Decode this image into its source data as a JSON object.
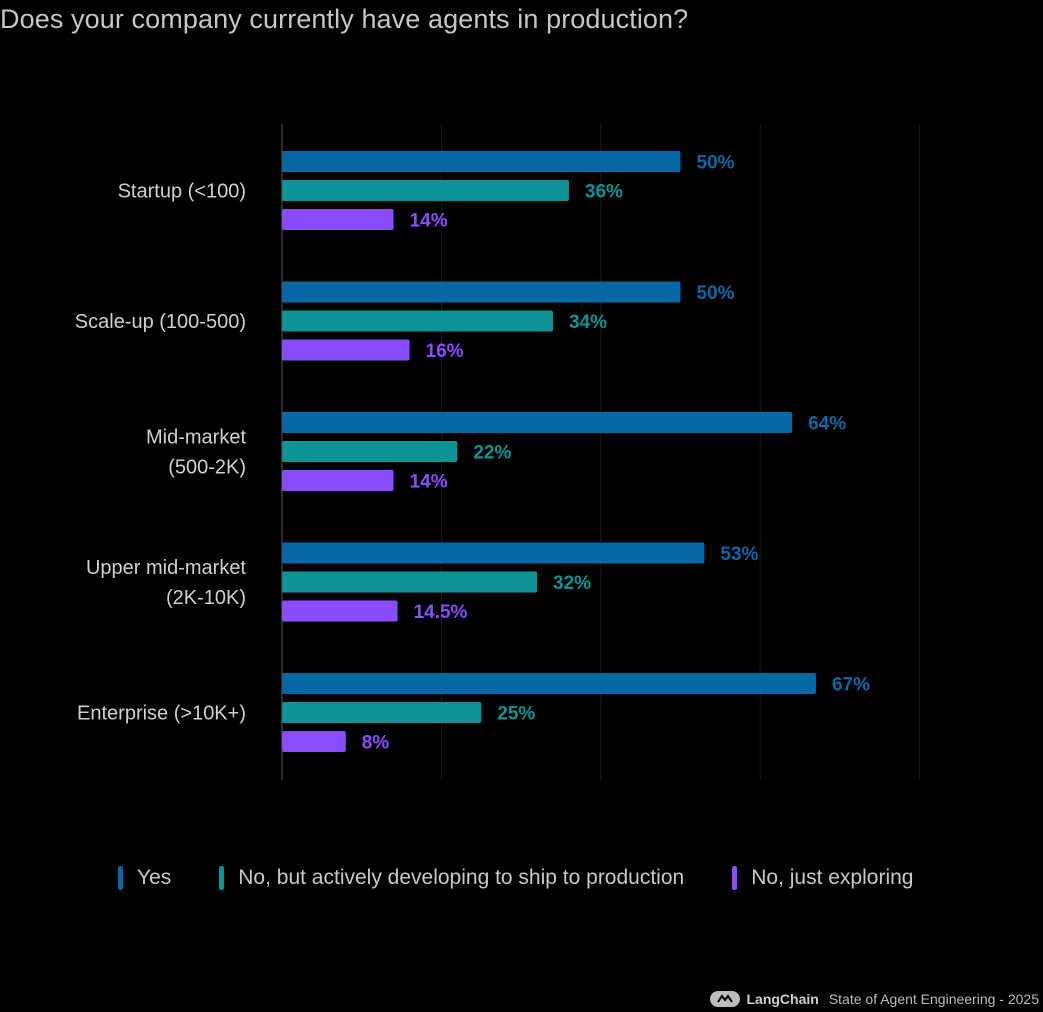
{
  "title": "Does your company currently have agents in production?",
  "colors": {
    "yes": "#0868a6",
    "developing": "#0c9396",
    "exploring": "#8a4cff"
  },
  "chart_data": {
    "type": "bar",
    "orientation": "horizontal",
    "title": "Does your company currently have agents in production?",
    "categories": [
      [
        "Startup (<100)"
      ],
      [
        "Scale-up (100-500)"
      ],
      [
        "Mid-market",
        "(500-2K)"
      ],
      [
        "Upper mid-market",
        "(2K-10K)"
      ],
      [
        "Enterprise (>10K+)"
      ]
    ],
    "series": [
      {
        "name": "Yes",
        "key": "yes",
        "values": [
          50,
          50,
          64,
          53,
          67
        ],
        "labels": [
          "50%",
          "50%",
          "64%",
          "53%",
          "67%"
        ]
      },
      {
        "name": "No, but actively developing to ship to production",
        "key": "developing",
        "values": [
          36,
          34,
          22,
          32,
          25
        ],
        "labels": [
          "36%",
          "34%",
          "22%",
          "32%",
          "25%"
        ]
      },
      {
        "name": "No, just exploring",
        "key": "exploring",
        "values": [
          14,
          16,
          14,
          14.5,
          8
        ],
        "labels": [
          "14%",
          "16%",
          "14%",
          "14.5%",
          "8%"
        ]
      }
    ],
    "xlim": [
      0,
      80
    ],
    "gridlines": [
      0,
      20,
      40,
      60,
      80
    ],
    "legend_position": "bottom"
  },
  "footer": {
    "brand": "LangChain",
    "text": "State of Agent Engineering - 2025"
  }
}
